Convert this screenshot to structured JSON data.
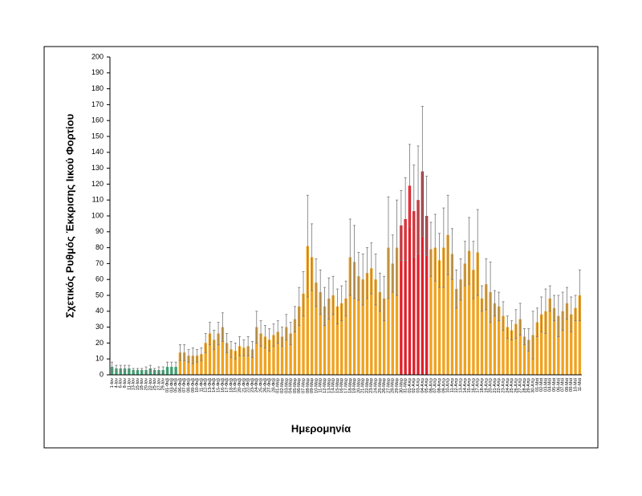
{
  "chart_data": {
    "type": "bar",
    "y_label": "Σχετικός Ρυθμός Έκκρισης Ιικού Φορτίου",
    "x_label": "Ημερομηνία",
    "categories": [
      "1-Ιαν",
      "4-Ιαν",
      "6-Ιαν",
      "8-Ιαν",
      "11-Ιαν",
      "13-Ιαν",
      "15-Ιαν",
      "18-Ιαν",
      "20-Ιαν",
      "22-Ιαν",
      "25-Ιαν",
      "27-Ιαν",
      "29-Ιαν",
      "01-Φεβ",
      "03-Φεβ",
      "05-Φεβ",
      "06-Φεβ",
      "07-Φεβ",
      "08-Φεβ",
      "09-Φεβ",
      "10-Φεβ",
      "11-Φεβ",
      "12-Φεβ",
      "13-Φεβ",
      "14-Φεβ",
      "15-Φεβ",
      "16-Φεβ",
      "17-Φεβ",
      "18-Φεβ",
      "19-Φεβ",
      "20-Φεβ",
      "21-Φεβ",
      "22-Φεβ",
      "23-Φεβ",
      "24-Φεβ",
      "25-Φεβ",
      "26-Φεβ",
      "27-Φεβ",
      "28-Φεβ",
      "01-Μαρ",
      "02-Μαρ",
      "03-Μαρ",
      "04-Μαρ",
      "05-Μαρ",
      "06-Μαρ",
      "07-Μαρ",
      "08-Μαρ",
      "09-Μαρ",
      "10-Μαρ",
      "11-Μαρ",
      "12-Μαρ",
      "13-Μαρ",
      "14-Μαρ",
      "15-Μαρ",
      "16-Μαρ",
      "17-Μαρ",
      "18-Μαρ",
      "19-Μαρ",
      "20-Μαρ",
      "21-Μαρ",
      "22-Μαρ",
      "23-Μαρ",
      "24-Μαρ",
      "25-Μαρ",
      "26-Μαρ",
      "27-Μαρ",
      "28-Μαρ",
      "29-Μαρ",
      "30-Μαρ",
      "31-Μαρ",
      "01-Απρ",
      "02-Απρ",
      "03-Απρ",
      "04-Απρ",
      "05-Απρ",
      "06-Απρ",
      "07-Απρ",
      "08-Απρ",
      "09-Απρ",
      "10-Απρ",
      "11-Απρ",
      "12-Απρ",
      "13-Απρ",
      "14-Απρ",
      "15-Απρ",
      "16-Απρ",
      "17-Απρ",
      "18-Απρ",
      "19-Απρ",
      "20-Απρ",
      "21-Απρ",
      "22-Απρ",
      "23-Απρ",
      "24-Απρ",
      "25-Απρ",
      "26-Απρ",
      "27-Απρ",
      "28-Απρ",
      "29-Απρ",
      "30-Απρ",
      "01-Μαϊ",
      "02-Μαϊ",
      "03-Μαϊ",
      "04-Μαϊ",
      "05-Μαϊ",
      "06-Μαϊ",
      "07-Μαϊ",
      "08-Μαϊ",
      "09-Μαϊ",
      "10-Μαϊ",
      "11-Μαϊ"
    ],
    "values": [
      5,
      4,
      4,
      4,
      4,
      3,
      3,
      3,
      3,
      4,
      3,
      3,
      3,
      5,
      5,
      5,
      14,
      14,
      12,
      12,
      12,
      13,
      20,
      26,
      22,
      26,
      30,
      20,
      16,
      15,
      18,
      17,
      18,
      16,
      30,
      26,
      24,
      22,
      25,
      27,
      24,
      30,
      26,
      35,
      43,
      51,
      81,
      74,
      58,
      52,
      43,
      48,
      50,
      43,
      45,
      48,
      74,
      71,
      62,
      60,
      64,
      67,
      60,
      52,
      48,
      80,
      70,
      80,
      94,
      98,
      119,
      103,
      110,
      128,
      100,
      79,
      80,
      72,
      80,
      88,
      76,
      54,
      60,
      70,
      78,
      66,
      77,
      48,
      57,
      52,
      45,
      43,
      37,
      30,
      28,
      32,
      35,
      24,
      22,
      25,
      33,
      38,
      40,
      48,
      42,
      37,
      40,
      45,
      38,
      42,
      50
    ],
    "errors": [
      3,
      2,
      2,
      2,
      2,
      1,
      1,
      1,
      2,
      2,
      1,
      2,
      2,
      3,
      3,
      3,
      5,
      5,
      4,
      5,
      4,
      4,
      6,
      7,
      6,
      7,
      9,
      6,
      5,
      5,
      6,
      5,
      6,
      5,
      10,
      8,
      7,
      7,
      7,
      7,
      6,
      8,
      7,
      8,
      12,
      14,
      32,
      21,
      15,
      14,
      12,
      13,
      12,
      11,
      11,
      11,
      24,
      23,
      15,
      16,
      16,
      16,
      16,
      12,
      14,
      32,
      18,
      30,
      22,
      26,
      26,
      29,
      34,
      41,
      25,
      17,
      21,
      17,
      25,
      25,
      16,
      12,
      13,
      14,
      21,
      18,
      27,
      8,
      16,
      19,
      8,
      9,
      9,
      7,
      6,
      9,
      10,
      5,
      7,
      15,
      9,
      11,
      14,
      8,
      8,
      13,
      12,
      10,
      11,
      8,
      16
    ],
    "colors": [
      "#3aa874",
      "#3aa874",
      "#3aa874",
      "#3aa874",
      "#3aa874",
      "#3aa874",
      "#3aa874",
      "#3aa874",
      "#3aa874",
      "#3aa874",
      "#3aa874",
      "#3aa874",
      "#3aa874",
      "#3aa874",
      "#3aa874",
      "#3aa874",
      "#f0a21e",
      "#f0a21e",
      "#f0a21e",
      "#f0a21e",
      "#f0a21e",
      "#f0a21e",
      "#f0a21e",
      "#f0a21e",
      "#f0a21e",
      "#f0a21e",
      "#f0a21e",
      "#f0a21e",
      "#f0a21e",
      "#f0a21e",
      "#f0a21e",
      "#f0a21e",
      "#f0a21e",
      "#f0a21e",
      "#f0a21e",
      "#f0a21e",
      "#f0a21e",
      "#f0a21e",
      "#f0a21e",
      "#f0a21e",
      "#f0a21e",
      "#f0a21e",
      "#f0a21e",
      "#f0a21e",
      "#f0a21e",
      "#f0a21e",
      "#f0a21e",
      "#f0a21e",
      "#f0a21e",
      "#f0a21e",
      "#f0a21e",
      "#f0a21e",
      "#f0a21e",
      "#f0a21e",
      "#f0a21e",
      "#f0a21e",
      "#f0a21e",
      "#f0a21e",
      "#f0a21e",
      "#f0a21e",
      "#f0a21e",
      "#f0a21e",
      "#f0a21e",
      "#f0a21e",
      "#f0a21e",
      "#f0a21e",
      "#f0a21e",
      "#f0a21e",
      "#e0202a",
      "#e0202a",
      "#e0202a",
      "#e0202a",
      "#e0202a",
      "#e0202a",
      "#e0202a",
      "#f0a21e",
      "#f0a21e",
      "#f0a21e",
      "#f0a21e",
      "#f0a21e",
      "#f0a21e",
      "#f0a21e",
      "#f0a21e",
      "#f0a21e",
      "#f0a21e",
      "#f0a21e",
      "#f0a21e",
      "#f0a21e",
      "#f0a21e",
      "#f0a21e",
      "#f0a21e",
      "#f0a21e",
      "#f0a21e",
      "#f0a21e",
      "#f0a21e",
      "#f0a21e",
      "#f0a21e",
      "#f0a21e",
      "#f0a21e",
      "#f0a21e",
      "#f0a21e",
      "#f0a21e",
      "#f0a21e",
      "#f0a21e",
      "#f0a21e",
      "#f0a21e",
      "#f0a21e",
      "#f0a21e",
      "#f0a21e",
      "#f0a21e",
      "#f0a21e"
    ],
    "error_color": "#777777",
    "ylim": [
      0,
      200
    ],
    "yticks": [
      0,
      10,
      20,
      30,
      40,
      50,
      60,
      70,
      80,
      90,
      100,
      110,
      120,
      130,
      140,
      150,
      160,
      170,
      180,
      190,
      200
    ]
  }
}
